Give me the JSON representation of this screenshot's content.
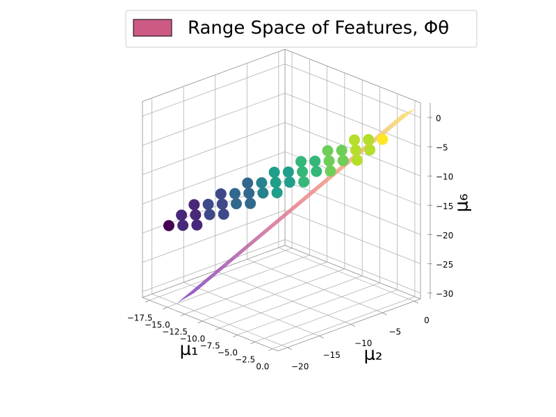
{
  "chart_data": {
    "type": "scatter3d",
    "legend_label": "Range Space of Features, Φθ",
    "surface_color": "#cc5a85",
    "surface_colors": [
      "#7a3cc4",
      "#e9808c",
      "#f7e26a"
    ],
    "surface": {
      "x": [
        -14,
        -12.5,
        1,
        0
      ],
      "y": [
        -21,
        -20,
        0,
        -1
      ],
      "z": [
        -30,
        -28,
        2,
        1
      ]
    },
    "colormap": "viridis",
    "xlabel": "μ₁",
    "ylabel": "μ₂",
    "zlabel": "μ₆",
    "x": [
      -17,
      -17,
      -17,
      -15,
      -15,
      -15,
      -15,
      -13,
      -13,
      -13,
      -13,
      -13,
      -11,
      -11,
      -11,
      -11,
      -11,
      -9,
      -9,
      -9,
      -9,
      -9,
      -7,
      -7,
      -7,
      -7,
      -7,
      -5,
      -5,
      -5,
      -5,
      -5,
      -3,
      -3,
      -3,
      -3,
      -1,
      -1,
      -1
    ],
    "y": [
      -19,
      -17,
      -15,
      -19,
      -17,
      -15,
      -13,
      -19,
      -17,
      -15,
      -13,
      -11,
      -17,
      -15,
      -13,
      -11,
      -9,
      -15,
      -13,
      -11,
      -9,
      -7,
      -13,
      -11,
      -9,
      -7,
      -5,
      -11,
      -9,
      -7,
      -5,
      -3,
      -9,
      -7,
      -5,
      -3,
      -7,
      -5,
      -3
    ],
    "z": [
      -19,
      -18,
      -17,
      -18,
      -17,
      -16,
      -15,
      -17,
      -16,
      -15,
      -14,
      -13,
      -15,
      -14,
      -13,
      -12,
      -11,
      -13,
      -12,
      -11,
      -10,
      -9,
      -11,
      -10,
      -9,
      -8,
      -7,
      -9,
      -8,
      -7,
      -6,
      -5,
      -7,
      -6,
      -5,
      -4,
      -5,
      -4,
      -3
    ],
    "xlim": [
      -18.5,
      0.8
    ],
    "ylim": [
      -21.5,
      1
    ],
    "zlim": [
      -31,
      2.5
    ],
    "xticks": [
      {
        "value": -17.5,
        "label": "−17.5"
      },
      {
        "value": -15,
        "label": "−15.0"
      },
      {
        "value": -12.5,
        "label": "−12.5"
      },
      {
        "value": -10,
        "label": "−10.0"
      },
      {
        "value": -7.5,
        "label": "−7.5"
      },
      {
        "value": -5,
        "label": "−5.0"
      },
      {
        "value": -2.5,
        "label": "−2.5"
      },
      {
        "value": 0,
        "label": "0.0"
      }
    ],
    "yticks": [
      {
        "value": -20,
        "label": "−20"
      },
      {
        "value": -15,
        "label": "−15"
      },
      {
        "value": -10,
        "label": "−10"
      },
      {
        "value": -5,
        "label": "−5"
      },
      0
    ],
    "zticks": [
      0,
      {
        "value": -5,
        "label": "−5"
      },
      {
        "value": -10,
        "label": "−10"
      },
      {
        "value": -15,
        "label": "−15"
      },
      {
        "value": -20,
        "label": "−20"
      },
      {
        "value": -25,
        "label": "−25"
      },
      {
        "value": -30,
        "label": "−30"
      }
    ],
    "grid": true
  }
}
